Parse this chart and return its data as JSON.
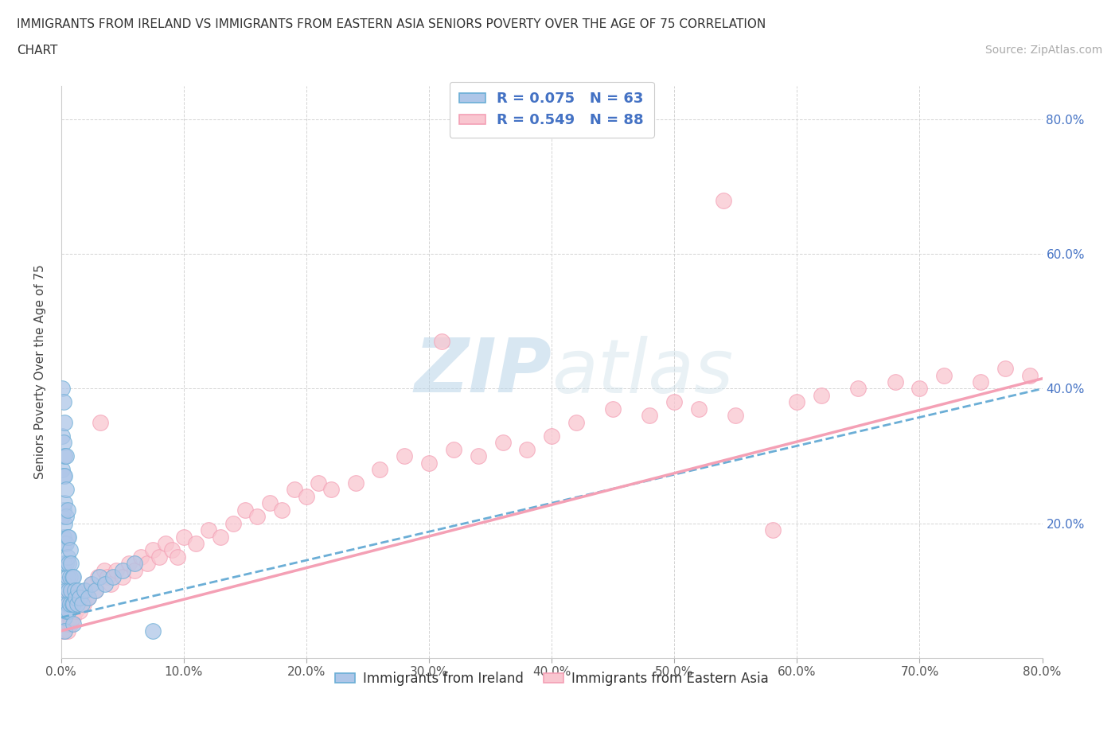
{
  "title_line1": "IMMIGRANTS FROM IRELAND VS IMMIGRANTS FROM EASTERN ASIA SENIORS POVERTY OVER THE AGE OF 75 CORRELATION",
  "title_line2": "CHART",
  "source_text": "Source: ZipAtlas.com",
  "watermark_zip": "ZIP",
  "watermark_atlas": "atlas",
  "ylabel": "Seniors Poverty Over the Age of 75",
  "xlim": [
    0.0,
    0.8
  ],
  "ylim": [
    0.0,
    0.85
  ],
  "xticks": [
    0.0,
    0.1,
    0.2,
    0.3,
    0.4,
    0.5,
    0.6,
    0.7,
    0.8
  ],
  "yticks": [
    0.0,
    0.2,
    0.4,
    0.6,
    0.8
  ],
  "ireland_color": "#6baed6",
  "ireland_face": "#aec6e8",
  "eastern_asia_color": "#f4a0b5",
  "eastern_asia_face": "#f9c6d0",
  "trend_ireland_color": "#6baed6",
  "trend_asia_color": "#f4a0b5",
  "legend_r_ireland": "R = 0.075",
  "legend_n_ireland": "N = 63",
  "legend_r_asia": "R = 0.549",
  "legend_n_asia": "N = 88",
  "grid_color": "#d0d0d0",
  "background_color": "#ffffff",
  "ireland_x": [
    0.001,
    0.001,
    0.001,
    0.001,
    0.002,
    0.002,
    0.002,
    0.002,
    0.002,
    0.002,
    0.003,
    0.003,
    0.003,
    0.003,
    0.003,
    0.003,
    0.003,
    0.003,
    0.003,
    0.003,
    0.003,
    0.004,
    0.004,
    0.004,
    0.004,
    0.004,
    0.004,
    0.004,
    0.005,
    0.005,
    0.005,
    0.005,
    0.005,
    0.006,
    0.006,
    0.006,
    0.006,
    0.007,
    0.007,
    0.007,
    0.008,
    0.008,
    0.009,
    0.009,
    0.01,
    0.01,
    0.011,
    0.012,
    0.013,
    0.014,
    0.015,
    0.017,
    0.019,
    0.022,
    0.025,
    0.028,
    0.031,
    0.036,
    0.042,
    0.05,
    0.06,
    0.075,
    0.01
  ],
  "ireland_y": [
    0.4,
    0.33,
    0.28,
    0.21,
    0.38,
    0.32,
    0.27,
    0.22,
    0.18,
    0.14,
    0.35,
    0.3,
    0.27,
    0.23,
    0.2,
    0.17,
    0.14,
    0.11,
    0.08,
    0.06,
    0.04,
    0.3,
    0.25,
    0.21,
    0.17,
    0.14,
    0.1,
    0.07,
    0.22,
    0.18,
    0.15,
    0.12,
    0.08,
    0.18,
    0.14,
    0.1,
    0.07,
    0.16,
    0.12,
    0.08,
    0.14,
    0.1,
    0.12,
    0.08,
    0.12,
    0.08,
    0.1,
    0.09,
    0.08,
    0.1,
    0.09,
    0.08,
    0.1,
    0.09,
    0.11,
    0.1,
    0.12,
    0.11,
    0.12,
    0.13,
    0.14,
    0.04,
    0.05
  ],
  "eastern_asia_x": [
    0.001,
    0.001,
    0.002,
    0.002,
    0.003,
    0.003,
    0.003,
    0.004,
    0.004,
    0.005,
    0.005,
    0.005,
    0.006,
    0.006,
    0.007,
    0.007,
    0.008,
    0.008,
    0.009,
    0.01,
    0.01,
    0.011,
    0.012,
    0.013,
    0.014,
    0.015,
    0.016,
    0.018,
    0.02,
    0.022,
    0.025,
    0.028,
    0.03,
    0.032,
    0.035,
    0.038,
    0.04,
    0.045,
    0.05,
    0.055,
    0.06,
    0.065,
    0.07,
    0.075,
    0.08,
    0.085,
    0.09,
    0.095,
    0.1,
    0.11,
    0.12,
    0.13,
    0.14,
    0.15,
    0.16,
    0.17,
    0.18,
    0.19,
    0.2,
    0.21,
    0.22,
    0.24,
    0.26,
    0.28,
    0.3,
    0.32,
    0.34,
    0.36,
    0.38,
    0.4,
    0.42,
    0.45,
    0.48,
    0.5,
    0.52,
    0.55,
    0.58,
    0.6,
    0.62,
    0.65,
    0.68,
    0.7,
    0.72,
    0.75,
    0.77,
    0.79,
    0.54,
    0.31
  ],
  "eastern_asia_y": [
    0.06,
    0.04,
    0.07,
    0.05,
    0.08,
    0.06,
    0.04,
    0.09,
    0.05,
    0.1,
    0.07,
    0.04,
    0.08,
    0.05,
    0.09,
    0.06,
    0.08,
    0.05,
    0.07,
    0.09,
    0.06,
    0.08,
    0.07,
    0.09,
    0.08,
    0.07,
    0.09,
    0.08,
    0.1,
    0.09,
    0.11,
    0.1,
    0.12,
    0.35,
    0.13,
    0.12,
    0.11,
    0.13,
    0.12,
    0.14,
    0.13,
    0.15,
    0.14,
    0.16,
    0.15,
    0.17,
    0.16,
    0.15,
    0.18,
    0.17,
    0.19,
    0.18,
    0.2,
    0.22,
    0.21,
    0.23,
    0.22,
    0.25,
    0.24,
    0.26,
    0.25,
    0.26,
    0.28,
    0.3,
    0.29,
    0.31,
    0.3,
    0.32,
    0.31,
    0.33,
    0.35,
    0.37,
    0.36,
    0.38,
    0.37,
    0.36,
    0.19,
    0.38,
    0.39,
    0.4,
    0.41,
    0.4,
    0.42,
    0.41,
    0.43,
    0.42,
    0.68,
    0.47
  ]
}
